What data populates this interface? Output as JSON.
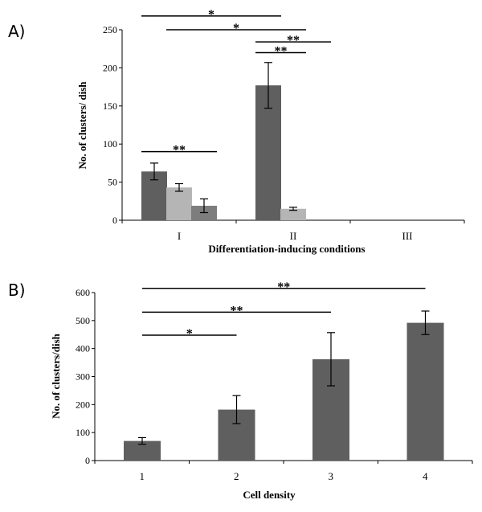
{
  "chart_data": [
    {
      "panel_label": "A)",
      "type": "bar",
      "categories": [
        "I",
        "II",
        "III"
      ],
      "xlabel": "Differentiation-inducing conditions",
      "ylabel": "No. of clusters/ dish",
      "ylim": [
        0,
        250
      ],
      "yticks": [
        0,
        50,
        100,
        150,
        200,
        250
      ],
      "series": [
        {
          "values": [
            64,
            177,
            null
          ],
          "errors": [
            11,
            30,
            null
          ],
          "color": "#5f5f5f"
        },
        {
          "values": [
            43,
            15,
            null
          ],
          "errors": [
            5,
            2,
            null
          ],
          "color": "#b5b5b5"
        },
        {
          "values": [
            19,
            null,
            null
          ],
          "errors": [
            9,
            null,
            null
          ],
          "color": "#7d7d7d"
        }
      ],
      "significance": [
        {
          "from": {
            "cat": 0,
            "series": 0
          },
          "to": {
            "cat": 0,
            "series": 2
          },
          "label": "**",
          "level": 90
        },
        {
          "from": {
            "cat": 0,
            "series": 0
          },
          "to": {
            "cat": 1,
            "series": 0
          },
          "label": "*",
          "level": 268
        },
        {
          "from": {
            "cat": 0,
            "series": 1
          },
          "to": {
            "cat": 1,
            "series": 1
          },
          "label": "*",
          "level": 250
        },
        {
          "from": {
            "cat": 1,
            "series": 0
          },
          "to": {
            "cat": 1,
            "series": 1
          },
          "label": "**",
          "level": 220
        },
        {
          "from": {
            "cat": 1,
            "series": 0
          },
          "to": {
            "cat": 1,
            "series": 2
          },
          "label": "**",
          "level": 234
        }
      ]
    },
    {
      "panel_label": "B)",
      "type": "bar",
      "categories": [
        "1",
        "2",
        "3",
        "4"
      ],
      "xlabel": "Cell density",
      "ylabel": "No. of clusters/dish",
      "ylim": [
        0,
        600
      ],
      "yticks": [
        0,
        100,
        200,
        300,
        400,
        500,
        600
      ],
      "series": [
        {
          "values": [
            70,
            182,
            362,
            492
          ],
          "errors": [
            12,
            50,
            95,
            42
          ],
          "color": "#5f5f5f"
        }
      ],
      "significance": [
        {
          "from": 0,
          "to": 1,
          "label": "*",
          "level": 448
        },
        {
          "from": 0,
          "to": 2,
          "label": "**",
          "level": 530
        },
        {
          "from": 0,
          "to": 3,
          "label": "**",
          "level": 615
        }
      ]
    }
  ]
}
